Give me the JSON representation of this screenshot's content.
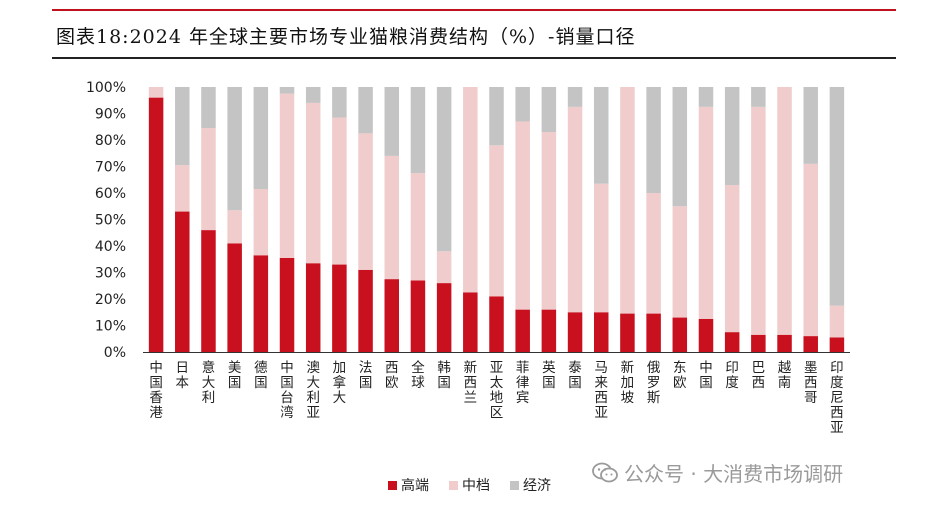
{
  "title": "图表18:2024 年全球主要市场专业猫粮消费结构（%）-销量口径",
  "watermark": "公众号 · 大消费市场调研",
  "chart_data": {
    "type": "bar",
    "stacked": true,
    "title": "图表18:2024 年全球主要市场专业猫粮消费结构（%）-销量口径",
    "categories": [
      "中国香港",
      "日本",
      "意大利",
      "美国",
      "德国",
      "中国台湾",
      "澳大利亚",
      "加拿大",
      "法国",
      "西欧",
      "全球",
      "韩国",
      "新西兰",
      "亚太地区",
      "菲律宾",
      "英国",
      "泰国",
      "马来西亚",
      "新加坡",
      "俄罗斯",
      "东欧",
      "中国",
      "印度",
      "巴西",
      "越南",
      "墨西哥",
      "印度尼西亚"
    ],
    "series": [
      {
        "name": "高端",
        "color": "#c8101e",
        "values": [
          96,
          53,
          46,
          41,
          36.5,
          35.5,
          33.5,
          33,
          31,
          27.5,
          27,
          26,
          22.5,
          21,
          16,
          16,
          15,
          15,
          14.5,
          14.5,
          13,
          12.5,
          7.5,
          6.5,
          6.5,
          6,
          5.5
        ]
      },
      {
        "name": "中档",
        "color": "#f0cccc",
        "values": [
          4,
          17.5,
          38.5,
          12.5,
          25,
          62,
          60.5,
          55.5,
          51.5,
          46.5,
          40.5,
          12,
          77.5,
          57,
          71,
          67,
          77.5,
          48.5,
          85.5,
          45.5,
          42,
          80,
          55.5,
          86,
          93.5,
          65,
          12
        ]
      },
      {
        "name": "经济",
        "color": "#c4c4c4",
        "values": [
          0,
          29.5,
          15.5,
          46.5,
          38.5,
          2.5,
          6,
          11.5,
          17.5,
          26,
          32.5,
          62,
          0,
          22,
          13,
          17,
          7.5,
          36.5,
          0,
          40,
          45,
          7.5,
          37,
          7.5,
          0,
          29,
          82.5
        ]
      }
    ],
    "xlabel": "",
    "ylabel": "",
    "ylim": [
      0,
      100
    ],
    "yticks": [
      "0%",
      "10%",
      "20%",
      "30%",
      "40%",
      "50%",
      "60%",
      "70%",
      "80%",
      "90%",
      "100%"
    ],
    "legend_position": "bottom-center"
  }
}
